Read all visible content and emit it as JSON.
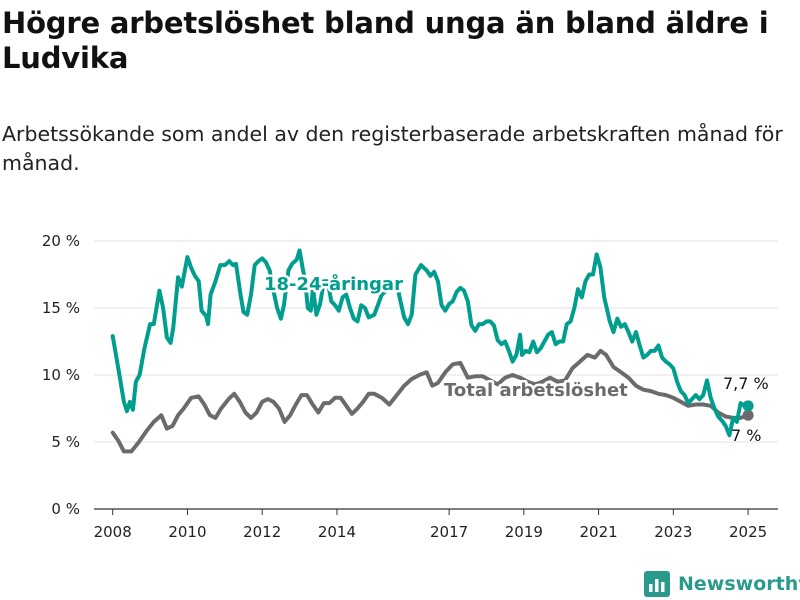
{
  "header": {
    "title": "Högre arbetslöshet bland unga än bland äldre i Ludvika",
    "subtitle": "Arbetssökande som andel av den registerbaserade arbetskraften månad för månad."
  },
  "brand": {
    "name": "Newsworthy",
    "icon": "bar-chart-logo-icon"
  },
  "colors": {
    "youth": "#009e8e",
    "total": "#6b6b6b",
    "grid": "#e3e3e3",
    "axis": "#333333",
    "brand": "#2a9a8c"
  },
  "chart_data": {
    "type": "line",
    "x_unit": "year",
    "xlim": [
      2007.5,
      2025.8
    ],
    "ylim": [
      0,
      20
    ],
    "y_ticks": [
      0,
      5,
      10,
      15,
      20
    ],
    "y_tick_labels": [
      "0 %",
      "5 %",
      "10 %",
      "15 %",
      "20 %"
    ],
    "x_ticks": [
      2008,
      2010,
      2012,
      2014,
      2017,
      2019,
      2021,
      2023,
      2025
    ],
    "x_tick_labels": [
      "2008",
      "2010",
      "2012",
      "2014",
      "2017",
      "2019",
      "2021",
      "2023",
      "2025"
    ],
    "grid": true,
    "series": [
      {
        "name": "18-24-åringar",
        "end_label": "7,7 %",
        "points": [
          [
            2008.0,
            12.9
          ],
          [
            2008.15,
            10.5
          ],
          [
            2008.3,
            8.0
          ],
          [
            2008.38,
            7.3
          ],
          [
            2008.46,
            8.0
          ],
          [
            2008.54,
            7.4
          ],
          [
            2008.62,
            9.5
          ],
          [
            2008.72,
            10.0
          ],
          [
            2008.85,
            12.0
          ],
          [
            2009.0,
            13.8
          ],
          [
            2009.1,
            13.8
          ],
          [
            2009.25,
            16.3
          ],
          [
            2009.35,
            15.0
          ],
          [
            2009.45,
            12.8
          ],
          [
            2009.55,
            12.4
          ],
          [
            2009.62,
            13.5
          ],
          [
            2009.75,
            17.3
          ],
          [
            2009.85,
            16.6
          ],
          [
            2010.0,
            18.8
          ],
          [
            2010.1,
            18.0
          ],
          [
            2010.2,
            17.4
          ],
          [
            2010.3,
            17.0
          ],
          [
            2010.38,
            14.8
          ],
          [
            2010.5,
            14.4
          ],
          [
            2010.55,
            13.8
          ],
          [
            2010.62,
            16.0
          ],
          [
            2010.75,
            17.0
          ],
          [
            2010.88,
            18.2
          ],
          [
            2011.0,
            18.2
          ],
          [
            2011.12,
            18.5
          ],
          [
            2011.22,
            18.2
          ],
          [
            2011.3,
            18.3
          ],
          [
            2011.42,
            16.0
          ],
          [
            2011.5,
            14.7
          ],
          [
            2011.6,
            14.5
          ],
          [
            2011.7,
            16.0
          ],
          [
            2011.8,
            18.2
          ],
          [
            2011.9,
            18.5
          ],
          [
            2012.0,
            18.7
          ],
          [
            2012.1,
            18.4
          ],
          [
            2012.2,
            17.8
          ],
          [
            2012.3,
            16.3
          ],
          [
            2012.4,
            15.0
          ],
          [
            2012.5,
            14.2
          ],
          [
            2012.58,
            15.2
          ],
          [
            2012.7,
            17.8
          ],
          [
            2012.8,
            18.3
          ],
          [
            2012.92,
            18.6
          ],
          [
            2013.0,
            19.3
          ],
          [
            2013.08,
            18.0
          ],
          [
            2013.15,
            17.0
          ],
          [
            2013.22,
            15.0
          ],
          [
            2013.3,
            14.8
          ],
          [
            2013.36,
            16.5
          ],
          [
            2013.45,
            14.5
          ],
          [
            2013.55,
            15.3
          ],
          [
            2013.65,
            17.0
          ],
          [
            2013.75,
            17.0
          ],
          [
            2013.85,
            15.5
          ],
          [
            2013.95,
            15.2
          ],
          [
            2014.05,
            14.8
          ],
          [
            2014.15,
            15.8
          ],
          [
            2014.25,
            16.0
          ],
          [
            2014.35,
            15.0
          ],
          [
            2014.45,
            14.2
          ],
          [
            2014.55,
            14.0
          ],
          [
            2014.65,
            15.2
          ],
          [
            2014.75,
            15.0
          ],
          [
            2014.85,
            14.3
          ],
          [
            2015.0,
            14.5
          ],
          [
            2015.2,
            16.0
          ],
          [
            2015.4,
            16.5
          ],
          [
            2015.6,
            16.8
          ],
          [
            2015.7,
            15.5
          ],
          [
            2015.8,
            14.3
          ],
          [
            2015.9,
            13.8
          ],
          [
            2016.0,
            14.5
          ],
          [
            2016.1,
            17.5
          ],
          [
            2016.25,
            18.2
          ],
          [
            2016.4,
            17.8
          ],
          [
            2016.5,
            17.4
          ],
          [
            2016.6,
            17.7
          ],
          [
            2016.7,
            17.0
          ],
          [
            2016.8,
            15.2
          ],
          [
            2016.9,
            14.8
          ],
          [
            2017.0,
            15.3
          ],
          [
            2017.1,
            15.5
          ],
          [
            2017.2,
            16.2
          ],
          [
            2017.3,
            16.5
          ],
          [
            2017.4,
            16.3
          ],
          [
            2017.5,
            15.5
          ],
          [
            2017.6,
            13.7
          ],
          [
            2017.7,
            13.3
          ],
          [
            2017.8,
            13.8
          ],
          [
            2017.9,
            13.8
          ],
          [
            2018.0,
            14.0
          ],
          [
            2018.1,
            14.0
          ],
          [
            2018.2,
            13.7
          ],
          [
            2018.3,
            12.6
          ],
          [
            2018.4,
            12.3
          ],
          [
            2018.5,
            12.5
          ],
          [
            2018.6,
            11.8
          ],
          [
            2018.7,
            11.0
          ],
          [
            2018.8,
            11.5
          ],
          [
            2018.9,
            13.0
          ],
          [
            2018.95,
            11.5
          ],
          [
            2019.05,
            11.8
          ],
          [
            2019.15,
            11.7
          ],
          [
            2019.25,
            12.5
          ],
          [
            2019.35,
            11.7
          ],
          [
            2019.45,
            12.0
          ],
          [
            2019.55,
            12.5
          ],
          [
            2019.65,
            13.0
          ],
          [
            2019.75,
            13.2
          ],
          [
            2019.85,
            12.3
          ],
          [
            2019.95,
            12.5
          ],
          [
            2020.05,
            12.5
          ],
          [
            2020.15,
            13.8
          ],
          [
            2020.25,
            14.0
          ],
          [
            2020.35,
            15.0
          ],
          [
            2020.45,
            16.4
          ],
          [
            2020.55,
            15.8
          ],
          [
            2020.65,
            17.0
          ],
          [
            2020.75,
            17.5
          ],
          [
            2020.85,
            17.5
          ],
          [
            2020.95,
            19.0
          ],
          [
            2021.05,
            18.0
          ],
          [
            2021.15,
            15.8
          ],
          [
            2021.3,
            14.0
          ],
          [
            2021.4,
            13.2
          ],
          [
            2021.5,
            14.2
          ],
          [
            2021.6,
            13.6
          ],
          [
            2021.7,
            13.8
          ],
          [
            2021.8,
            13.2
          ],
          [
            2021.9,
            12.5
          ],
          [
            2022.0,
            13.2
          ],
          [
            2022.1,
            12.2
          ],
          [
            2022.2,
            11.3
          ],
          [
            2022.3,
            11.5
          ],
          [
            2022.4,
            11.8
          ],
          [
            2022.5,
            11.8
          ],
          [
            2022.6,
            12.2
          ],
          [
            2022.7,
            11.3
          ],
          [
            2022.8,
            11.0
          ],
          [
            2022.9,
            10.8
          ],
          [
            2023.0,
            10.5
          ],
          [
            2023.1,
            9.5
          ],
          [
            2023.2,
            8.8
          ],
          [
            2023.3,
            8.5
          ],
          [
            2023.4,
            7.9
          ],
          [
            2023.5,
            8.2
          ],
          [
            2023.6,
            8.5
          ],
          [
            2023.7,
            8.2
          ],
          [
            2023.8,
            8.5
          ],
          [
            2023.9,
            9.6
          ],
          [
            2024.0,
            8.3
          ],
          [
            2024.1,
            7.5
          ],
          [
            2024.2,
            6.9
          ],
          [
            2024.3,
            6.6
          ],
          [
            2024.4,
            6.2
          ],
          [
            2024.5,
            5.5
          ],
          [
            2024.6,
            6.8
          ],
          [
            2024.7,
            6.5
          ],
          [
            2024.8,
            7.9
          ],
          [
            2024.9,
            7.7
          ],
          [
            2025.0,
            7.7
          ]
        ]
      },
      {
        "name": "Total arbetslöshet",
        "end_label": "7 %",
        "points": [
          [
            2008.0,
            5.7
          ],
          [
            2008.15,
            5.1
          ],
          [
            2008.3,
            4.3
          ],
          [
            2008.5,
            4.3
          ],
          [
            2008.7,
            5.0
          ],
          [
            2008.9,
            5.8
          ],
          [
            2009.1,
            6.5
          ],
          [
            2009.3,
            7.0
          ],
          [
            2009.45,
            6.0
          ],
          [
            2009.6,
            6.2
          ],
          [
            2009.75,
            7.0
          ],
          [
            2009.9,
            7.5
          ],
          [
            2010.1,
            8.3
          ],
          [
            2010.3,
            8.4
          ],
          [
            2010.45,
            7.8
          ],
          [
            2010.6,
            7.0
          ],
          [
            2010.75,
            6.8
          ],
          [
            2010.9,
            7.5
          ],
          [
            2011.1,
            8.2
          ],
          [
            2011.25,
            8.6
          ],
          [
            2011.4,
            8.0
          ],
          [
            2011.55,
            7.2
          ],
          [
            2011.7,
            6.8
          ],
          [
            2011.85,
            7.2
          ],
          [
            2012.0,
            8.0
          ],
          [
            2012.15,
            8.2
          ],
          [
            2012.3,
            8.0
          ],
          [
            2012.45,
            7.5
          ],
          [
            2012.6,
            6.5
          ],
          [
            2012.75,
            7.0
          ],
          [
            2012.9,
            7.8
          ],
          [
            2013.05,
            8.5
          ],
          [
            2013.2,
            8.5
          ],
          [
            2013.35,
            7.8
          ],
          [
            2013.5,
            7.2
          ],
          [
            2013.65,
            7.9
          ],
          [
            2013.8,
            7.9
          ],
          [
            2013.95,
            8.3
          ],
          [
            2014.1,
            8.3
          ],
          [
            2014.25,
            7.7
          ],
          [
            2014.4,
            7.1
          ],
          [
            2014.55,
            7.5
          ],
          [
            2014.7,
            8.0
          ],
          [
            2014.85,
            8.6
          ],
          [
            2015.0,
            8.6
          ],
          [
            2015.2,
            8.3
          ],
          [
            2015.4,
            7.8
          ],
          [
            2015.6,
            8.5
          ],
          [
            2015.8,
            9.2
          ],
          [
            2016.0,
            9.7
          ],
          [
            2016.2,
            10.0
          ],
          [
            2016.4,
            10.2
          ],
          [
            2016.55,
            9.2
          ],
          [
            2016.7,
            9.4
          ],
          [
            2016.9,
            10.2
          ],
          [
            2017.1,
            10.8
          ],
          [
            2017.3,
            10.9
          ],
          [
            2017.5,
            9.8
          ],
          [
            2017.7,
            9.9
          ],
          [
            2017.9,
            9.9
          ],
          [
            2018.1,
            9.6
          ],
          [
            2018.3,
            9.3
          ],
          [
            2018.5,
            9.8
          ],
          [
            2018.7,
            10.0
          ],
          [
            2018.9,
            9.8
          ],
          [
            2019.1,
            9.5
          ],
          [
            2019.3,
            9.3
          ],
          [
            2019.5,
            9.5
          ],
          [
            2019.7,
            9.8
          ],
          [
            2019.9,
            9.5
          ],
          [
            2020.1,
            9.6
          ],
          [
            2020.3,
            10.5
          ],
          [
            2020.5,
            11.0
          ],
          [
            2020.7,
            11.5
          ],
          [
            2020.9,
            11.3
          ],
          [
            2021.05,
            11.8
          ],
          [
            2021.2,
            11.5
          ],
          [
            2021.4,
            10.6
          ],
          [
            2021.6,
            10.2
          ],
          [
            2021.8,
            9.8
          ],
          [
            2022.0,
            9.2
          ],
          [
            2022.2,
            8.9
          ],
          [
            2022.4,
            8.8
          ],
          [
            2022.6,
            8.6
          ],
          [
            2022.8,
            8.5
          ],
          [
            2023.0,
            8.3
          ],
          [
            2023.2,
            8.0
          ],
          [
            2023.4,
            7.7
          ],
          [
            2023.6,
            7.8
          ],
          [
            2023.8,
            7.8
          ],
          [
            2024.0,
            7.7
          ],
          [
            2024.2,
            7.2
          ],
          [
            2024.4,
            6.9
          ],
          [
            2024.6,
            6.8
          ],
          [
            2024.8,
            6.8
          ],
          [
            2025.0,
            7.0
          ]
        ]
      }
    ]
  }
}
